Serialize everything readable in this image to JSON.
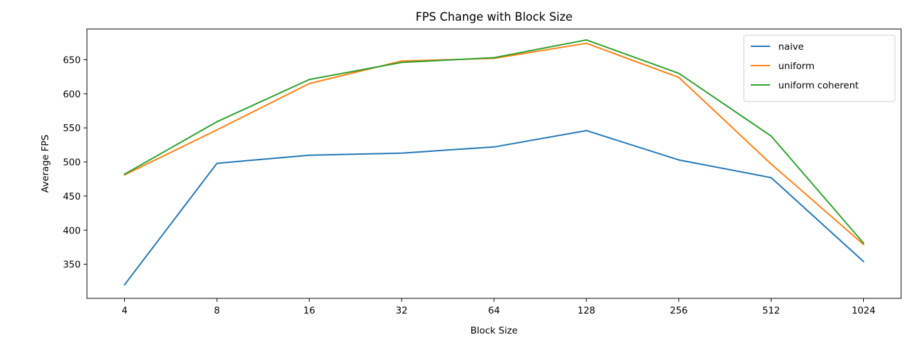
{
  "chart_data": {
    "type": "line",
    "title": "FPS Change with Block Size",
    "xlabel": "Block Size",
    "ylabel": "Average FPS",
    "categories": [
      "4",
      "8",
      "16",
      "32",
      "64",
      "128",
      "256",
      "512",
      "1024"
    ],
    "yticks": [
      350,
      400,
      450,
      500,
      550,
      600,
      650
    ],
    "ylim": [
      300,
      695
    ],
    "grid": false,
    "legend_position": "top-right",
    "series": [
      {
        "name": "naive",
        "color": "#1f77b4",
        "values": [
          320,
          498,
          510,
          513,
          522,
          546,
          503,
          477,
          354
        ]
      },
      {
        "name": "uniform",
        "color": "#ff7f0e",
        "values": [
          481,
          547,
          615,
          648,
          652,
          674,
          624,
          497,
          379
        ]
      },
      {
        "name": "uniform coherent",
        "color": "#2ca02c",
        "values": [
          482,
          559,
          621,
          646,
          653,
          679,
          630,
          538,
          381
        ]
      }
    ]
  }
}
